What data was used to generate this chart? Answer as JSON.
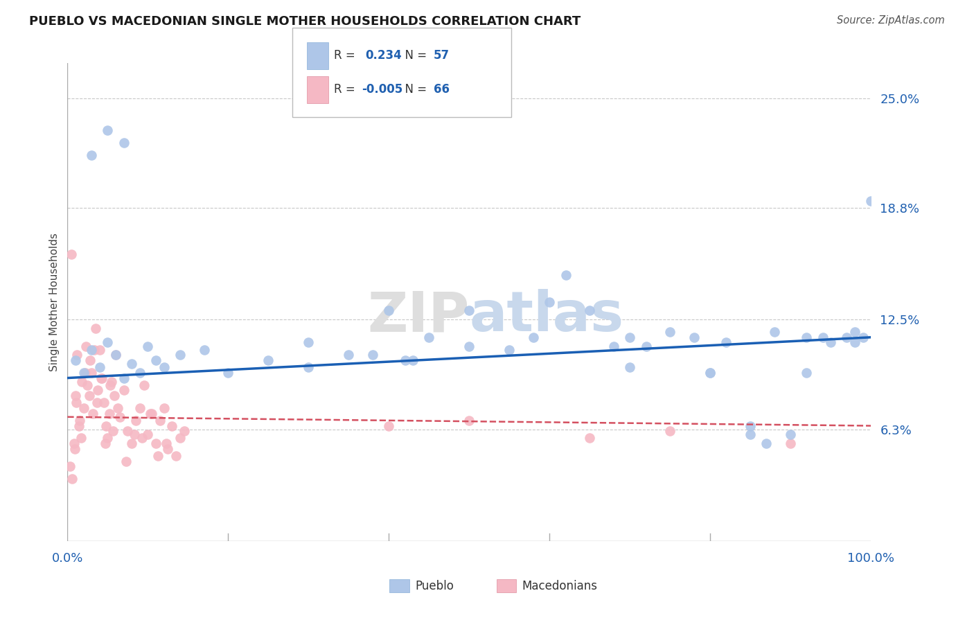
{
  "title": "PUEBLO VS MACEDONIAN SINGLE MOTHER HOUSEHOLDS CORRELATION CHART",
  "source": "Source: ZipAtlas.com",
  "ylabel": "Single Mother Households",
  "y_tick_labels": [
    "6.3%",
    "12.5%",
    "18.8%",
    "25.0%"
  ],
  "y_tick_values": [
    6.3,
    12.5,
    18.8,
    25.0
  ],
  "x_range": [
    0,
    100
  ],
  "y_range": [
    0,
    27
  ],
  "legend_blue_r": "0.234",
  "legend_blue_n": "57",
  "legend_pink_r": "-0.005",
  "legend_pink_n": "66",
  "blue_color": "#aec6e8",
  "pink_color": "#f5b8c4",
  "blue_line_color": "#1a5fb4",
  "pink_line_color": "#d45060",
  "grid_color": "#c8c8c8",
  "blue_points_x": [
    1,
    2,
    3,
    4,
    5,
    6,
    7,
    8,
    9,
    10,
    11,
    12,
    14,
    17,
    20,
    25,
    30,
    35,
    40,
    43,
    45,
    50,
    55,
    58,
    60,
    62,
    65,
    68,
    70,
    72,
    75,
    78,
    80,
    82,
    85,
    87,
    88,
    90,
    92,
    94,
    95,
    97,
    98,
    99,
    100,
    3,
    5,
    7,
    30,
    38,
    42,
    50,
    70,
    80,
    85,
    92,
    98
  ],
  "blue_points_y": [
    10.2,
    9.5,
    10.8,
    9.8,
    11.2,
    10.5,
    9.2,
    10.0,
    9.5,
    11.0,
    10.2,
    9.8,
    10.5,
    10.8,
    9.5,
    10.2,
    9.8,
    10.5,
    13.0,
    10.2,
    11.5,
    11.0,
    10.8,
    11.5,
    13.5,
    15.0,
    13.0,
    11.0,
    11.5,
    11.0,
    11.8,
    11.5,
    9.5,
    11.2,
    6.5,
    5.5,
    11.8,
    6.0,
    9.5,
    11.5,
    11.2,
    11.5,
    11.8,
    11.5,
    19.2,
    21.8,
    23.2,
    22.5,
    11.2,
    10.5,
    10.2,
    13.0,
    9.8,
    9.5,
    6.0,
    11.5,
    11.2
  ],
  "pink_points_x": [
    0.5,
    0.8,
    1.0,
    1.2,
    1.5,
    1.8,
    2.0,
    2.3,
    2.5,
    2.8,
    3.0,
    3.2,
    3.5,
    3.8,
    4.0,
    4.2,
    4.5,
    4.8,
    5.0,
    5.2,
    5.5,
    5.8,
    6.0,
    6.5,
    7.0,
    7.5,
    8.0,
    8.5,
    9.0,
    9.5,
    10.0,
    10.5,
    11.0,
    11.5,
    12.0,
    12.5,
    13.0,
    13.5,
    14.0,
    14.5,
    0.3,
    0.6,
    0.9,
    1.1,
    1.4,
    1.7,
    2.2,
    2.7,
    3.3,
    3.7,
    4.3,
    4.7,
    5.3,
    5.7,
    6.3,
    7.3,
    8.3,
    9.3,
    10.3,
    11.3,
    12.3,
    40.0,
    50.0,
    65.0,
    75.0,
    90.0
  ],
  "pink_points_y": [
    16.2,
    5.5,
    8.2,
    10.5,
    6.8,
    9.0,
    7.5,
    11.0,
    8.8,
    10.2,
    9.5,
    7.2,
    12.0,
    8.5,
    10.8,
    9.2,
    7.8,
    6.5,
    5.8,
    7.2,
    9.0,
    8.2,
    10.5,
    7.0,
    8.5,
    6.2,
    5.5,
    6.8,
    7.5,
    8.8,
    6.0,
    7.2,
    5.5,
    6.8,
    7.5,
    5.2,
    6.5,
    4.8,
    5.8,
    6.2,
    4.2,
    3.5,
    5.2,
    7.8,
    6.5,
    5.8,
    9.5,
    8.2,
    10.8,
    7.8,
    9.2,
    5.5,
    8.8,
    6.2,
    7.5,
    4.5,
    6.0,
    5.8,
    7.2,
    4.8,
    5.5,
    6.5,
    6.8,
    5.8,
    6.2,
    5.5
  ],
  "blue_line_x0": 0,
  "blue_line_y0": 9.2,
  "blue_line_x1": 100,
  "blue_line_y1": 11.5,
  "pink_line_x0": 0,
  "pink_line_y0": 7.0,
  "pink_line_x1": 100,
  "pink_line_y1": 6.5
}
